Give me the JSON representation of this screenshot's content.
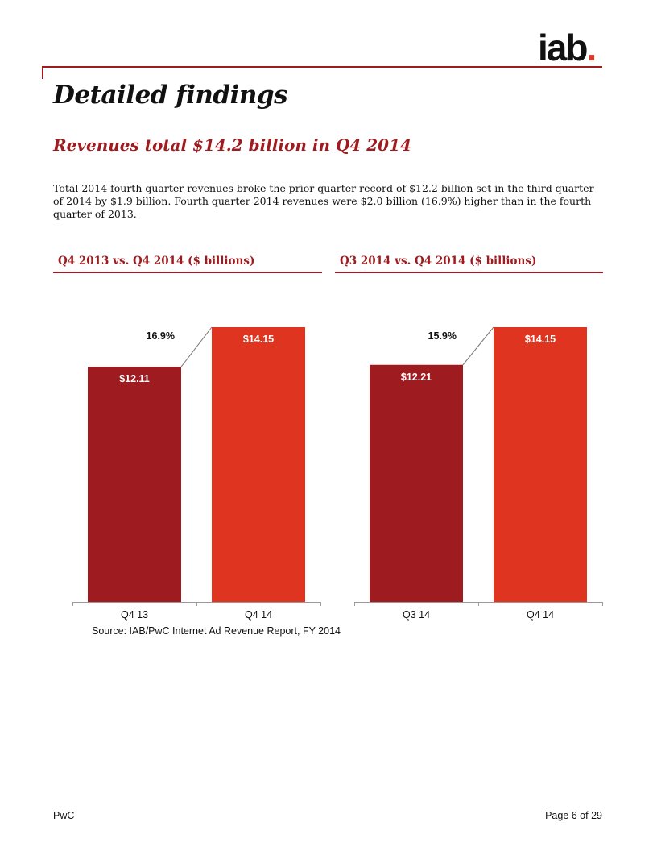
{
  "logo": {
    "text": "iab",
    "dot": "."
  },
  "title": "Detailed findings",
  "section_title": "Revenues total $14.2 billion in Q4 2014",
  "intro": "Total 2014 fourth quarter revenues broke the prior quarter record of $12.2 billion set in the third quarter of 2014 by $1.9 billion.  Fourth quarter 2014 revenues were $2.0 billion (16.9%) higher than in the fourth quarter of 2013.",
  "colors": {
    "accent": "#9e1b1f",
    "bar_prior": "#9e1b1f",
    "bar_current": "#de3420"
  },
  "chart_data": [
    {
      "type": "bar",
      "title": "Q4 2013 vs. Q4 2014 ($ billions)",
      "categories": [
        "Q4 13",
        "Q4 14"
      ],
      "values": [
        12.11,
        14.15
      ],
      "labels": [
        "$12.11",
        "$14.15"
      ],
      "change_label": "16.9%",
      "ylim": [
        0,
        14.15
      ]
    },
    {
      "type": "bar",
      "title": "Q3 2014 vs. Q4 2014 ($ billions)",
      "categories": [
        "Q3 14",
        "Q4 14"
      ],
      "values": [
        12.21,
        14.15
      ],
      "labels": [
        "$12.21",
        "$14.15"
      ],
      "change_label": "15.9%",
      "ylim": [
        0,
        14.15
      ]
    }
  ],
  "source": "Source: IAB/PwC Internet Ad Revenue Report, FY 2014",
  "footer": {
    "left": "PwC",
    "right": "Page 6 of 29"
  }
}
